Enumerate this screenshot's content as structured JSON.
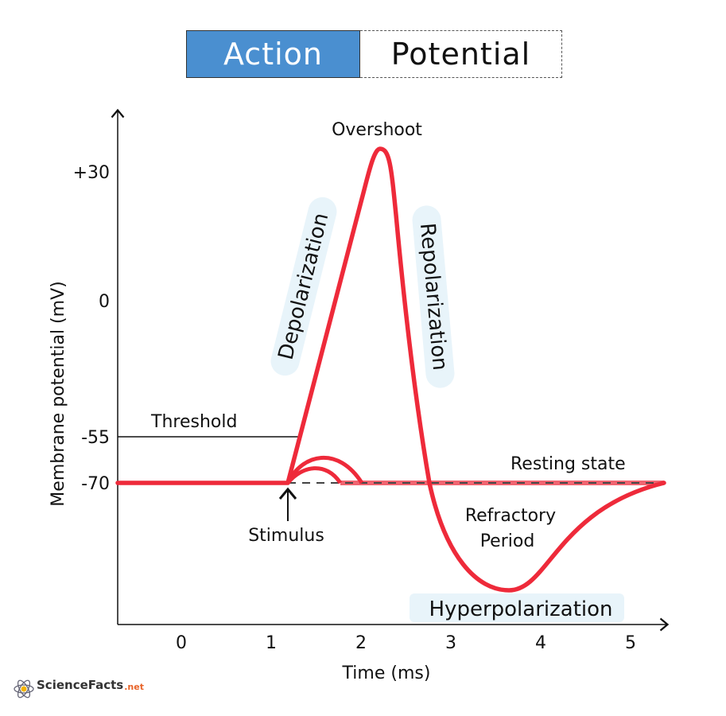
{
  "title": {
    "part1": "Action",
    "part2": "Potential"
  },
  "axes": {
    "ylabel": "Membrane potential (mV)",
    "xlabel": "Time (ms)",
    "yticks": [
      "+30",
      "0",
      "-55",
      "-70"
    ],
    "xticks": [
      "0",
      "1",
      "2",
      "3",
      "4",
      "5"
    ]
  },
  "labels": {
    "overshoot": "Overshoot",
    "depolarization": "Depolarization",
    "repolarization": "Repolarization",
    "threshold": "Threshold",
    "resting_state": "Resting state",
    "stimulus": "Stimulus",
    "refractory_line1": "Refractory",
    "refractory_line2": "Period",
    "hyperpolarization": "Hyperpolarization"
  },
  "colors": {
    "curve": "#ee2a3a",
    "title_fill": "#4a8fd0",
    "label_bg": "#e8f4fa"
  },
  "logo": {
    "name": "ScienceFacts",
    "suffix": ".net"
  }
}
